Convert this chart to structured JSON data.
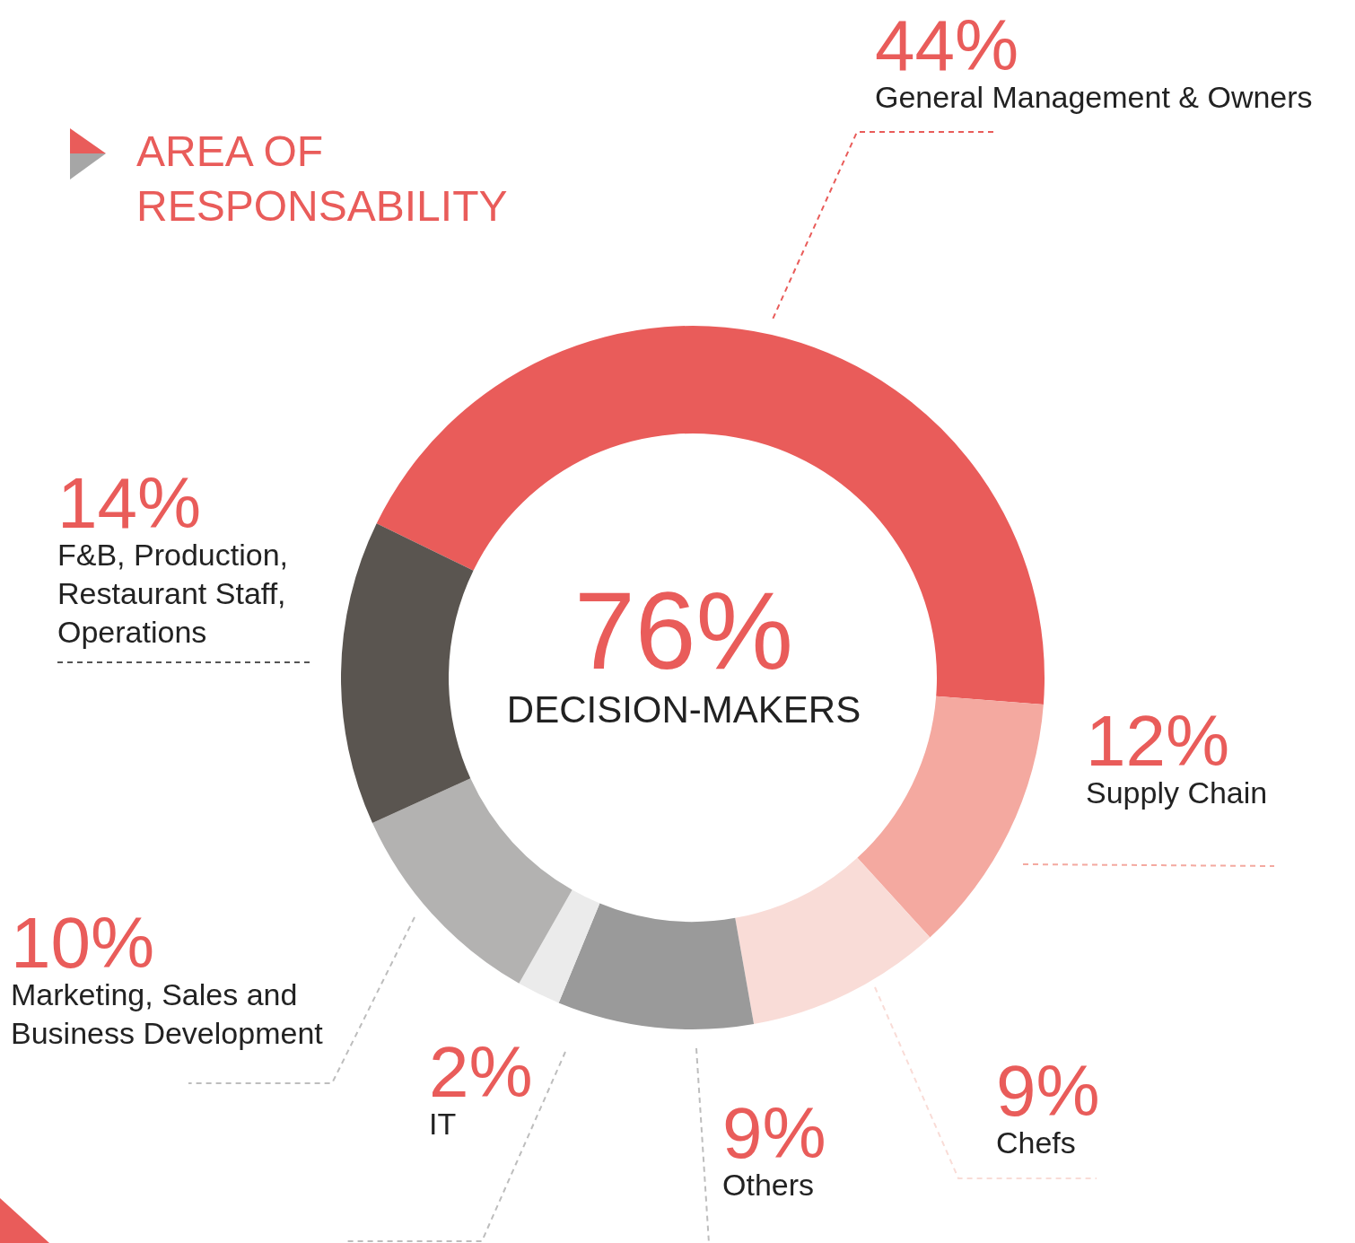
{
  "chart_data": {
    "type": "donut",
    "title": "AREA OF\nRESPONSABILITY",
    "categories": [
      "General Management & Owners",
      "Supply Chain",
      "Chefs",
      "Others",
      "IT",
      "Marketing, Sales and\nBusiness Development",
      "F&B, Production,\nRestaurant Staff,\nOperations"
    ],
    "values": [
      44,
      12,
      9,
      9,
      2,
      10,
      14
    ],
    "colors": [
      "#e95c5a",
      "#f4a9a0",
      "#f9dcd7",
      "#9a9a9a",
      "#ebebeb",
      "#b3b2b1",
      "#5a5550"
    ],
    "value_labels": [
      "44%",
      "12%",
      "9%",
      "9%",
      "2%",
      "10%",
      "14%"
    ],
    "annotations": [
      "76%",
      "DECISION-MAKERS"
    ]
  }
}
